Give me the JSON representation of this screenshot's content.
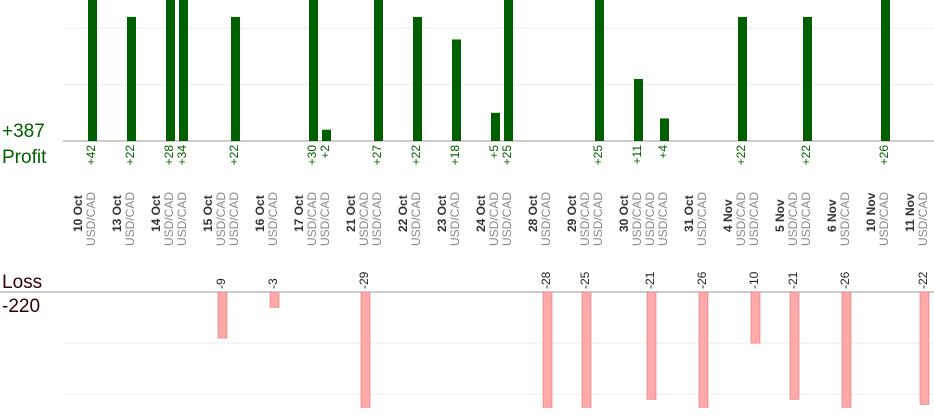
{
  "chart_data": {
    "type": "profit-loss-bars",
    "profit_label": "Profit",
    "profit_total": "+387",
    "loss_label": "Loss",
    "loss_total": "-220",
    "profit_color": "#006000",
    "loss_color": "#ffaaaa",
    "profit_ylim": [
      0,
      25
    ],
    "profit_yticks": [
      10,
      20
    ],
    "loss_ylim": [
      0,
      -22.7
    ],
    "loss_yticks": [
      -10,
      -20
    ],
    "grid": true,
    "groups": [
      {
        "date": "10 Oct",
        "pairs": [
          "USD/CAD"
        ],
        "values": [
          42
        ],
        "value_labels": [
          "+42"
        ]
      },
      {
        "date": "13 Oct",
        "pairs": [
          "USD/CAD"
        ],
        "values": [
          22
        ],
        "value_labels": [
          "+22"
        ]
      },
      {
        "date": "14 Oct",
        "pairs": [
          "USD/CAD",
          "USD/CAD"
        ],
        "values": [
          28,
          34
        ],
        "value_labels": [
          "+28",
          "+34"
        ]
      },
      {
        "date": "15 Oct",
        "pairs": [
          "USD/CAD",
          "USD/CAD"
        ],
        "values": [
          -9,
          22
        ],
        "value_labels": [
          "-9",
          "+22"
        ]
      },
      {
        "date": "16 Oct",
        "pairs": [
          "USD/CAD"
        ],
        "values": [
          -3
        ],
        "value_labels": [
          "-3"
        ]
      },
      {
        "date": "17 Oct",
        "pairs": [
          "USD/CAD",
          "USD/CAD"
        ],
        "values": [
          30,
          2
        ],
        "value_labels": [
          "+30",
          "+2"
        ]
      },
      {
        "date": "21 Oct",
        "pairs": [
          "USD/CAD",
          "USD/CAD"
        ],
        "values": [
          -29,
          27
        ],
        "value_labels": [
          "-29",
          "+27"
        ]
      },
      {
        "date": "22 Oct",
        "pairs": [
          "USD/CAD"
        ],
        "values": [
          22
        ],
        "value_labels": [
          "+22"
        ]
      },
      {
        "date": "23 Oct",
        "pairs": [
          "USD/CAD"
        ],
        "values": [
          18
        ],
        "value_labels": [
          "+18"
        ]
      },
      {
        "date": "24 Oct",
        "pairs": [
          "USD/CAD",
          "USD/CAD"
        ],
        "values": [
          5,
          25
        ],
        "value_labels": [
          "+5",
          "+25"
        ]
      },
      {
        "date": "28 Oct",
        "pairs": [
          "USD/CAD"
        ],
        "values": [
          -28
        ],
        "value_labels": [
          "-28"
        ]
      },
      {
        "date": "29 Oct",
        "pairs": [
          "USD/CAD",
          "USD/CAD"
        ],
        "values": [
          -25,
          25
        ],
        "value_labels": [
          "-25",
          "+25"
        ]
      },
      {
        "date": "30 Oct",
        "pairs": [
          "USD/CAD",
          "USD/CAD",
          "USD/CAD"
        ],
        "values": [
          11,
          -21,
          4
        ],
        "value_labels": [
          "+11",
          "-21",
          "+4"
        ]
      },
      {
        "date": "31 Oct",
        "pairs": [
          "USD/CAD"
        ],
        "values": [
          -26
        ],
        "value_labels": [
          "-26"
        ]
      },
      {
        "date": "4 Nov",
        "pairs": [
          "USD/CAD",
          "USD/CAD"
        ],
        "values": [
          22,
          -10
        ],
        "value_labels": [
          "+22",
          "-10"
        ]
      },
      {
        "date": "5 Nov",
        "pairs": [
          "USD/CAD",
          "USD/CAD"
        ],
        "values": [
          -21,
          22
        ],
        "value_labels": [
          "-21",
          "+22"
        ]
      },
      {
        "date": "6 Nov",
        "pairs": [
          "USD/CAD"
        ],
        "values": [
          -26
        ],
        "value_labels": [
          "-26"
        ]
      },
      {
        "date": "10 Nov",
        "pairs": [
          "USD/CAD"
        ],
        "values": [
          26
        ],
        "value_labels": [
          "+26"
        ]
      },
      {
        "date": "11 Nov",
        "pairs": [
          "USD/CAD"
        ],
        "values": [
          -22
        ],
        "value_labels": [
          "-22"
        ]
      }
    ]
  }
}
